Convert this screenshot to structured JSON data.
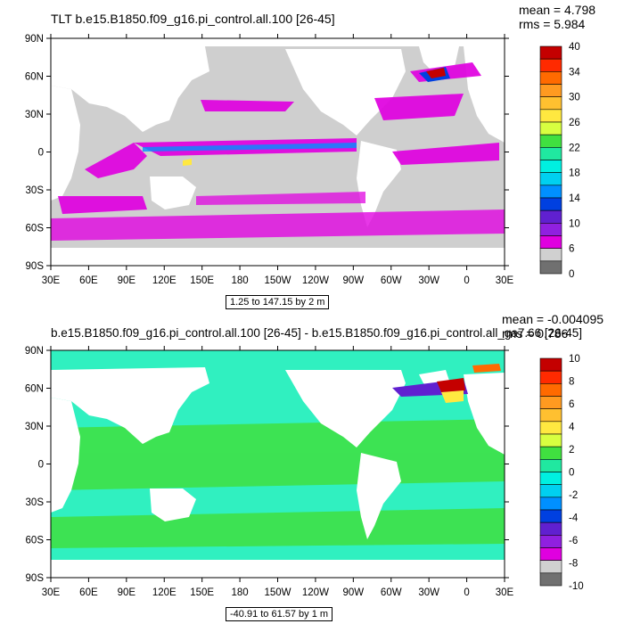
{
  "panels": [
    {
      "title": "TLT b.e15.B1850.f09_g16.pi_control.all.100 [26-45]",
      "mean_label": "mean = 4.798",
      "rms_label": "rms = 5.984",
      "range_label": "1.25 to 147.15 by 2 m",
      "colorbar_labels": [
        "40",
        "34",
        "30",
        "26",
        "22",
        "18",
        "14",
        "10",
        "6",
        "0"
      ],
      "colors": [
        "#c40000",
        "#ff2a00",
        "#ff6a00",
        "#ff9a20",
        "#ffc030",
        "#ffe840",
        "#d8ff40",
        "#40e040",
        "#20e8a0",
        "#00f0e0",
        "#00d0f0",
        "#0090ff",
        "#0040e0",
        "#6020d0",
        "#9020e0",
        "#e000e0",
        "#d0d0d0",
        "#707070"
      ]
    },
    {
      "title": "b.e15.B1850.f09_g16.pi_control.all.100 [26-45] - b.e15.B1850.f09_g16.pi_control.all_ga7.66 [26-45]",
      "mean_label": "mean = -0.004095",
      "rms_label": "rms = 0.786",
      "range_label": "-40.91 to 61.57 by 1 m",
      "colorbar_labels": [
        "10",
        "8",
        "6",
        "4",
        "2",
        "0",
        "-2",
        "-4",
        "-6",
        "-8",
        "-10"
      ],
      "colors": [
        "#c40000",
        "#ff2a00",
        "#ff6a00",
        "#ff9a20",
        "#ffc030",
        "#ffe840",
        "#d8ff40",
        "#40e040",
        "#20e8a0",
        "#00f0e0",
        "#00d0f0",
        "#0090ff",
        "#0040e0",
        "#6020d0",
        "#9020e0",
        "#e000e0",
        "#d0d0d0",
        "#707070"
      ]
    }
  ],
  "lon_labels": [
    "30E",
    "60E",
    "90E",
    "120E",
    "150E",
    "180",
    "150W",
    "120W",
    "90W",
    "60W",
    "30W",
    "0",
    "30E"
  ],
  "lat_labels": [
    "90N",
    "60N",
    "30N",
    "0",
    "30S",
    "60S",
    "90S"
  ],
  "colors": {
    "land": "#ffffff",
    "ocean_gray": "#cfcfcf",
    "magenta": "#e000e0",
    "cyan_green": "#30f0c0",
    "green": "#40e040"
  }
}
